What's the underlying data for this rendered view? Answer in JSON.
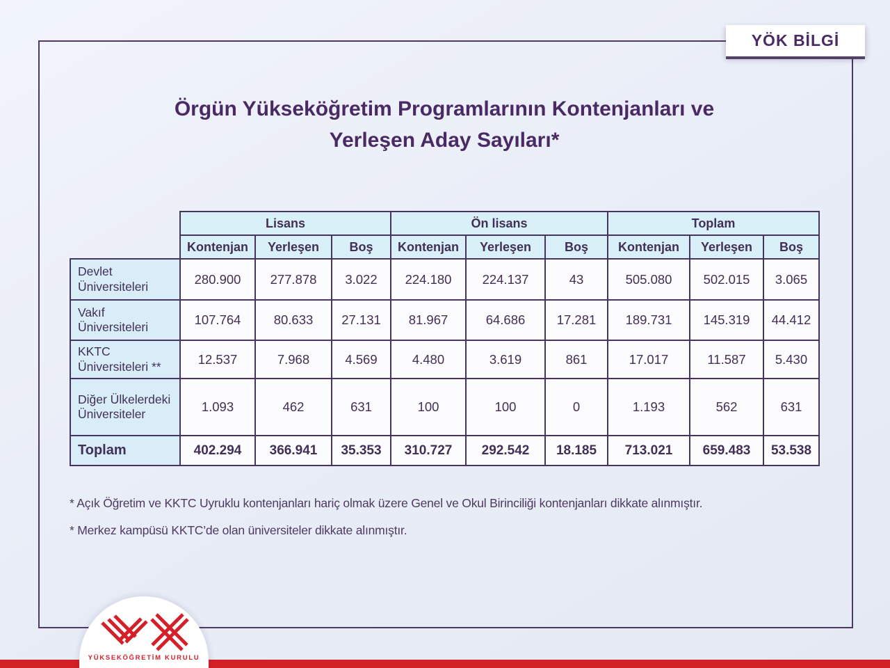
{
  "badge": {
    "label": "YÖK BİLGİ"
  },
  "title": "Örgün Yükseköğretim Programlarının Kontenjanları ve Yerleşen Aday Sayıları*",
  "table": {
    "groups": [
      {
        "label": "Lisans",
        "columns": [
          "Kontenjan",
          "Yerleşen",
          "Boş"
        ]
      },
      {
        "label": "Ön lisans",
        "columns": [
          "Kontenjan",
          "Yerleşen",
          "Boş"
        ]
      },
      {
        "label": "Toplam",
        "columns": [
          "Kontenjan",
          "Yerleşen",
          "Boş"
        ]
      }
    ],
    "rows": [
      {
        "label": "Devlet Üniversiteleri",
        "values": [
          "280.900",
          "277.878",
          "3.022",
          "224.180",
          "224.137",
          "43",
          "505.080",
          "502.015",
          "3.065"
        ]
      },
      {
        "label": "Vakıf Üniversiteleri",
        "values": [
          "107.764",
          "80.633",
          "27.131",
          "81.967",
          "64.686",
          "17.281",
          "189.731",
          "145.319",
          "44.412"
        ]
      },
      {
        "label": "KKTC Üniversiteleri **",
        "values": [
          "12.537",
          "7.968",
          "4.569",
          "4.480",
          "3.619",
          "861",
          "17.017",
          "11.587",
          "5.430"
        ]
      },
      {
        "label": "Diğer Ülkelerdeki Üniversiteler",
        "values": [
          "1.093",
          "462",
          "631",
          "100",
          "100",
          "0",
          "1.193",
          "562",
          "631"
        ]
      },
      {
        "label": "Toplam",
        "is_total": true,
        "values": [
          "402.294",
          "366.941",
          "35.353",
          "310.727",
          "292.542",
          "18.185",
          "713.021",
          "659.483",
          "53.538"
        ]
      }
    ]
  },
  "footnotes": [
    "* Açık Öğretim ve KKTC Uyruklu kontenjanları hariç olmak üzere Genel ve Okul Birinciliği kontenjanları dikkate alınmıştır.",
    "* Merkez kampüsü KKTC’de olan üniversiteler dikkate alınmıştır."
  ],
  "logo": {
    "caption": "YÜKSEKÖĞRETİM KURULU"
  },
  "colors": {
    "accent_purple": "#4a2a64",
    "border_purple": "#453460",
    "header_blue": "#daf0f9",
    "label_blue": "#d8edf8",
    "brand_red": "#d42127"
  }
}
